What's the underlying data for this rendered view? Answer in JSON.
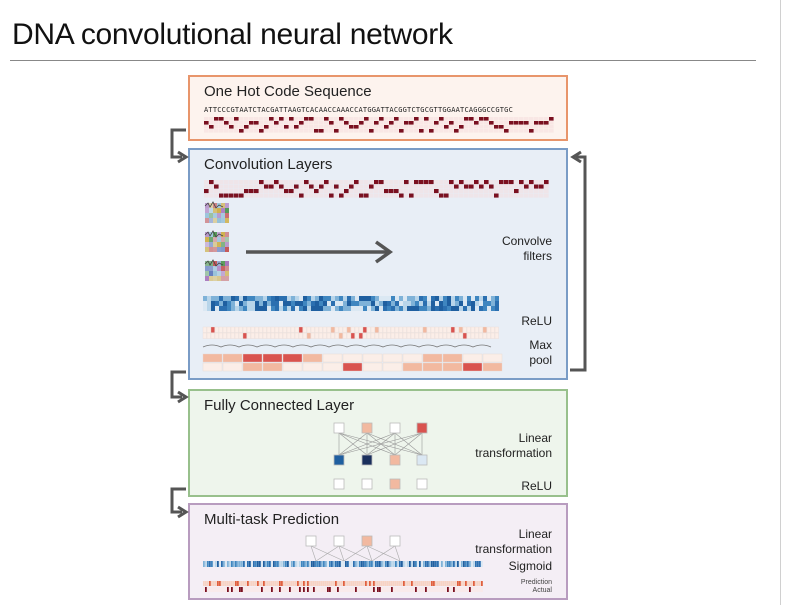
{
  "title": "DNA convolutional neural network",
  "panels": {
    "onehot": {
      "title": "One Hot Code Sequence",
      "sequence": "ATTCCCGTAATCTACGATTAAGTCACAACCAAACCATGGATTACGGTCTGCGTTGGAATCAGGGCCGTGC",
      "border": "#e8956b",
      "fill": "#fdf3ee"
    },
    "conv": {
      "title": "Convolution Layers",
      "convolve_label_1": "Convolve",
      "convolve_label_2": "filters",
      "relu_label": "ReLU",
      "maxpool_label_1": "Max",
      "maxpool_label_2": "pool",
      "border": "#7a9cc6",
      "fill": "#e8eef6"
    },
    "fc": {
      "title": "Fully Connected Layer",
      "linear_label_1": "Linear",
      "linear_label_2": "transformation",
      "relu_label": "ReLU",
      "border": "#98c08c",
      "fill": "#eef5ec"
    },
    "mtp": {
      "title": "Multi-task Prediction",
      "linear_label_1": "Linear",
      "linear_label_2": "transformation",
      "sigmoid_label": "Sigmoid",
      "prediction_label": "Prediction",
      "actual_label": "Actual",
      "border": "#b89cbf",
      "fill": "#f4eef5"
    }
  },
  "colors": {
    "onehot_cell": "#7a1020",
    "arrow": "#555555"
  }
}
